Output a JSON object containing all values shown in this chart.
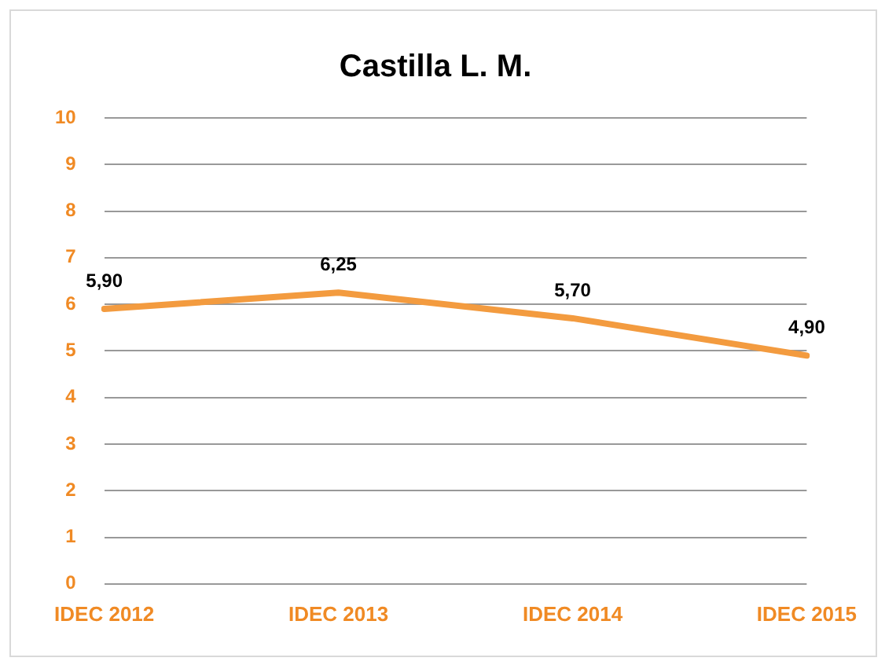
{
  "chart_data": {
    "type": "line",
    "title": "Castilla L. M.",
    "categories": [
      "IDEC 2012",
      "IDEC 2013",
      "IDEC 2014",
      "IDEC 2015"
    ],
    "series": [
      {
        "color": "#f39b3f",
        "values": [
          5.9,
          6.25,
          5.7,
          4.9
        ],
        "value_labels": [
          "5,90",
          "6,25",
          "5,70",
          "4,90"
        ]
      }
    ],
    "ylim": [
      0,
      10
    ],
    "yticks": [
      0,
      1,
      2,
      3,
      4,
      5,
      6,
      7,
      8,
      9,
      10
    ],
    "grid": "y",
    "legend": false,
    "marker": "none",
    "line_style": "solid"
  }
}
